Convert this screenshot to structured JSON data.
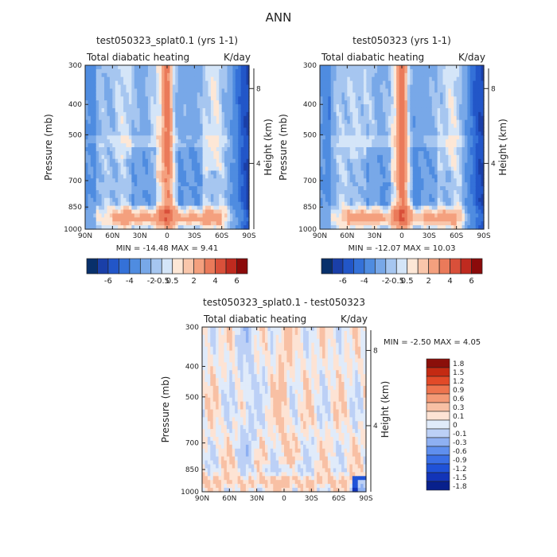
{
  "page": {
    "title": "ANN"
  },
  "colors": {
    "main_scale": [
      "#08306b",
      "#1a3fa8",
      "#2256c8",
      "#3471d8",
      "#4f8ce0",
      "#78a8e8",
      "#a6c6f0",
      "#d4e5f8",
      "#fde7d6",
      "#f9c6ab",
      "#f4a07e",
      "#ea7a5a",
      "#d9503a",
      "#bf2a1f",
      "#8b0a0a"
    ],
    "diff_scale": [
      "#08208c",
      "#1234b8",
      "#1f52d8",
      "#3a6fe6",
      "#5f8fee",
      "#8eb0f2",
      "#bcd0f6",
      "#e0ebfa",
      "#fde3d4",
      "#f8c0a4",
      "#f49a76",
      "#ee744e",
      "#e24a28",
      "#c42a12",
      "#8b0f0a"
    ]
  },
  "chart_data": [
    {
      "type": "heatmap",
      "title": "test050323_splat0.1 (yrs 1-1)",
      "subtitle_left": "Total diabatic heating",
      "subtitle_right": "K/day",
      "ylabel": "Pressure (mb)",
      "ylabel_right": "Height (km)",
      "x_ticks": [
        "90N",
        "60N",
        "30N",
        "0",
        "30S",
        "60S",
        "90S"
      ],
      "y_ticks": [
        "300",
        "400",
        "500",
        "700",
        "850",
        "1000"
      ],
      "y_ticks_right": [
        "8",
        "4"
      ],
      "min_max_text": "MIN = -14.48   MAX =   9.41",
      "colorbar_labels": [
        "-6",
        "-4",
        "-2",
        "-0.5",
        "0.5",
        "2",
        "4",
        "6"
      ]
    },
    {
      "type": "heatmap",
      "title": "test050323 (yrs 1-1)",
      "subtitle_left": "Total diabatic heating",
      "subtitle_right": "K/day",
      "ylabel": "Pressure (mb)",
      "ylabel_right": "Height (km)",
      "x_ticks": [
        "90N",
        "60N",
        "30N",
        "0",
        "30S",
        "60S",
        "90S"
      ],
      "y_ticks": [
        "300",
        "400",
        "500",
        "700",
        "850",
        "1000"
      ],
      "y_ticks_right": [
        "8",
        "4"
      ],
      "min_max_text": "MIN = -12.07   MAX =  10.03",
      "colorbar_labels": [
        "-6",
        "-4",
        "-2",
        "-0.5",
        "0.5",
        "2",
        "4",
        "6"
      ]
    },
    {
      "type": "heatmap",
      "title": "test050323_splat0.1 - test050323",
      "subtitle_left": "Total diabatic heating",
      "subtitle_right": "K/day",
      "ylabel": "Pressure (mb)",
      "ylabel_right": "Height (km)",
      "x_ticks": [
        "90N",
        "60N",
        "30N",
        "0",
        "30S",
        "60S",
        "90S"
      ],
      "y_ticks": [
        "300",
        "400",
        "500",
        "700",
        "850",
        "1000"
      ],
      "y_ticks_right": [
        "8",
        "4"
      ],
      "min_max_text": "MIN =   -2.50   MAX =   4.05",
      "colorbar_labels": [
        "1.8",
        "1.5",
        "1.2",
        "0.9",
        "0.6",
        "0.3",
        "0.1",
        "0",
        "-0.1",
        "-0.3",
        "-0.6",
        "-0.9",
        "-1.2",
        "-1.5",
        "-1.8"
      ]
    }
  ]
}
